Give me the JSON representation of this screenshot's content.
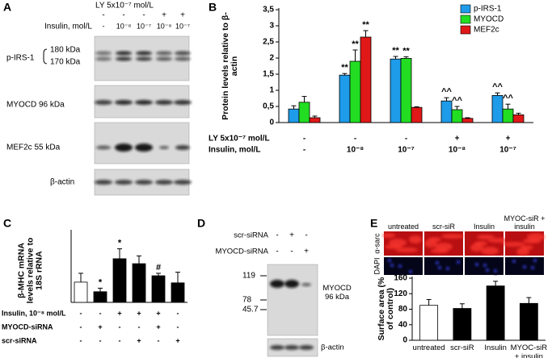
{
  "panel_a": {
    "letter": "A",
    "treatments": [
      {
        "label": "LY 5x10⁻⁷ mol/L",
        "values": [
          "-",
          "-",
          "-",
          "+",
          "+"
        ]
      },
      {
        "label": "Insulin, mol/L",
        "values": [
          "-",
          "10⁻⁸",
          "10⁻⁷",
          "10⁻⁸",
          "10⁻⁷"
        ]
      }
    ],
    "bands": {
      "p_irs1": "p-IRS-1",
      "kda_180": "180 kDa",
      "kda_170": "170 kDa",
      "myocd": "MYOCD 96  kDa",
      "mef2c": "MEF2c 55 kDa",
      "actin": "β-actin"
    }
  },
  "chart_data": [
    {
      "type": "bar",
      "letter": "B",
      "ylabel": "Protein levels relative to β-actin",
      "ylim": [
        0,
        3.5
      ],
      "yticks": [
        0,
        {
          "value": 0.5,
          "label": "0,5"
        },
        1,
        {
          "value": 1.5,
          "label": "1,5"
        },
        2,
        {
          "value": 2.5,
          "label": "2,5"
        },
        3,
        {
          "value": 3.5,
          "label": "3,5"
        }
      ],
      "legend": "top-right",
      "series": [
        {
          "name": "p-IRS-1",
          "color": "#1e9be9",
          "values": [
            0.42,
            1.47,
            1.97,
            0.67,
            0.84
          ],
          "errors": [
            0.1,
            0.05,
            0.08,
            0.1,
            0.08
          ],
          "annotations": [
            null,
            "**",
            "**",
            "^^",
            "^^"
          ]
        },
        {
          "name": "MYOCD",
          "color": "#22dd22",
          "values": [
            0.63,
            1.9,
            1.99,
            0.4,
            0.42
          ],
          "errors": [
            0.18,
            0.35,
            0.05,
            0.1,
            0.15
          ],
          "annotations": [
            null,
            "**",
            "**",
            "^^",
            "^^"
          ]
        },
        {
          "name": "MEF2c",
          "color": "#e01818",
          "values": [
            0.15,
            2.65,
            0.47,
            0.13,
            0.24
          ],
          "errors": [
            0.05,
            0.2,
            0.02,
            0.02,
            0.05
          ],
          "annotations": [
            null,
            "**",
            null,
            null,
            null
          ]
        }
      ],
      "conditions": [
        {
          "label": "LY 5x10⁻⁷ mol/L",
          "values": [
            "-",
            "-",
            "-",
            "+",
            "+"
          ]
        },
        {
          "label": "Insulin, mol/L",
          "values": [
            "-",
            "10⁻⁸",
            "10⁻⁷",
            "10⁻⁸",
            "10⁻⁷"
          ]
        }
      ]
    },
    {
      "type": "bar",
      "letter": "C",
      "ylabel": "β-MHC mRNA levels relative to 18S rRNA",
      "ylim": [
        0,
        2
      ],
      "values": [
        0.57,
        0.3,
        1.23,
        1.09,
        0.75,
        0.55
      ],
      "errors": [
        0.25,
        0.1,
        0.28,
        0.22,
        0.07,
        0.3
      ],
      "colors": [
        "#ffffff",
        "#000000",
        "#000000",
        "#000000",
        "#000000",
        "#000000"
      ],
      "annotations": [
        null,
        "*",
        "*",
        null,
        "#",
        null
      ],
      "conditions": [
        {
          "label": "Insulin, 10⁻⁸ mol/L",
          "values": [
            "-",
            "-",
            "+",
            "+",
            "+",
            "-"
          ]
        },
        {
          "label": "MYOCD-siRNA",
          "values": [
            "-",
            "+",
            "-",
            "-",
            "+",
            "-"
          ]
        },
        {
          "label": "scr-siRNA",
          "values": [
            "-",
            "-",
            "-",
            "+",
            "-",
            "+"
          ]
        }
      ]
    },
    {
      "type": "bar",
      "ylabel": "Surface area (% of control)",
      "ylim": [
        0,
        160
      ],
      "yticks": [
        0,
        40,
        80,
        120,
        160
      ],
      "categories": [
        "untreated",
        "scr-siR",
        "Insulin",
        "MYOC-siR + insulin"
      ],
      "values": [
        90,
        82,
        140,
        95
      ],
      "errors": [
        15,
        12,
        12,
        15
      ],
      "colors": [
        "#ffffff",
        "#000000",
        "#000000",
        "#000000"
      ],
      "annotations": [
        null,
        null,
        "*",
        null
      ]
    }
  ],
  "panel_d": {
    "letter": "D",
    "treatments": [
      {
        "label": "scr-siRNA",
        "values": [
          "-",
          "+",
          "-"
        ]
      },
      {
        "label": "MYOCD-siRNA",
        "values": [
          "-",
          "-",
          "+"
        ]
      }
    ],
    "markers": [
      119,
      78,
      45.7
    ],
    "bands": {
      "myocd": "MYOCD 96 kDa",
      "actin": "β-actin"
    }
  },
  "panel_e_images": {
    "letter": "E",
    "columns": [
      "untreated",
      "scr-siR",
      "Insulin",
      "MYOC-siR + insulin"
    ],
    "rows": [
      "α-sarc",
      "DAPI"
    ]
  }
}
